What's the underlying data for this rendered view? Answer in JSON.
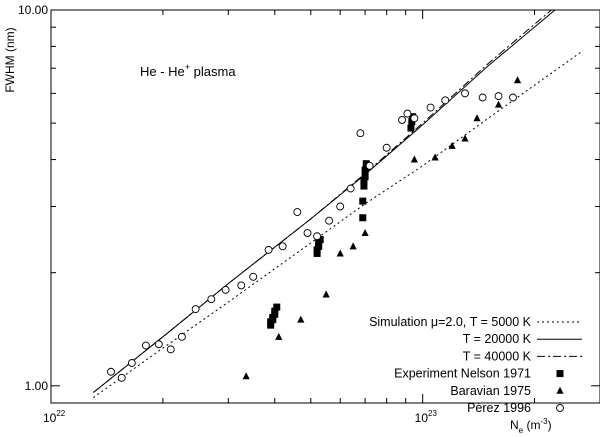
{
  "chart_data": {
    "type": "scatter",
    "title": "",
    "annotation": {
      "text": "He - He",
      "sup": "+",
      "suffix": " plasma"
    },
    "ylabel": "FWHM  (nm)",
    "xlabel": {
      "main": "N",
      "sub": "e",
      "unit_pre": " (m",
      "unit_sup": "-3",
      "unit_post": ")"
    },
    "xscale": "log",
    "yscale": "log",
    "xlim": [
      1e+22,
      3e+23
    ],
    "ylim": [
      0.9,
      10
    ],
    "xticks": [
      {
        "value": 1e+22,
        "base": "10",
        "exp": "22"
      },
      {
        "value": 1e+23,
        "base": "10",
        "exp": "23"
      }
    ],
    "yticks": [
      {
        "value": 1.0,
        "label": "1.00"
      },
      {
        "value": 10.0,
        "label": "10.00"
      }
    ],
    "grid": false,
    "legend_position": "bottom-right",
    "series": [
      {
        "name": "Simulation μ=2.0, T =   5000 K",
        "kind": "line",
        "dash": "2,3",
        "color": "#000000",
        "x": [
          1.3e+22,
          2e+22,
          3e+22,
          5e+22,
          7e+22,
          1e+23,
          1.5e+23,
          2.7e+23
        ],
        "y": [
          0.93,
          1.26,
          1.67,
          2.4,
          3.05,
          3.85,
          5.15,
          7.8
        ]
      },
      {
        "name": "T = 20000 K",
        "kind": "line",
        "dash": "",
        "color": "#000000",
        "x": [
          1.3e+22,
          2e+22,
          3e+22,
          5e+22,
          7e+22,
          1e+23,
          1.5e+23,
          2.27e+23
        ],
        "y": [
          0.96,
          1.35,
          1.87,
          2.78,
          3.65,
          4.95,
          7.1,
          10.0
        ]
      },
      {
        "name": "T = 40000 K",
        "kind": "line",
        "dash": "8,3,2,3",
        "color": "#000000",
        "x": [
          1.3e+22,
          2e+22,
          3e+22,
          5e+22,
          7e+22,
          1e+23,
          1.5e+23,
          2.22e+23
        ],
        "y": [
          0.96,
          1.35,
          1.87,
          2.78,
          3.67,
          5.0,
          7.2,
          10.0
        ]
      },
      {
        "name": "Experiment Nelson 1971",
        "kind": "points",
        "marker": "square",
        "x": [
          3.9e+22,
          3.9e+22,
          3.95e+22,
          3.95e+22,
          4e+22,
          4e+22,
          4.05e+22,
          5.2e+22,
          5.2e+22,
          5.25e+22,
          5.25e+22,
          5.3e+22,
          6.9e+22,
          6.9e+22,
          6.95e+22,
          6.95e+22,
          7e+22,
          7e+22,
          7.05e+22,
          9.3e+22,
          9.35e+22,
          9.4e+22
        ],
        "y": [
          1.45,
          1.48,
          1.5,
          1.52,
          1.55,
          1.58,
          1.62,
          2.25,
          2.3,
          2.35,
          2.4,
          2.45,
          2.8,
          3.1,
          3.4,
          3.5,
          3.6,
          3.75,
          3.9,
          4.85,
          5.05,
          5.2
        ]
      },
      {
        "name": "Baravian 1975",
        "kind": "points",
        "marker": "triangle",
        "x": [
          3.35e+22,
          4.1e+22,
          4.7e+22,
          5.5e+22,
          6e+22,
          6.5e+22,
          7e+22,
          9.5e+22,
          1.08e+23,
          1.2e+23,
          1.3e+23,
          1.4e+23,
          1.6e+23,
          1.8e+23
        ],
        "y": [
          1.06,
          1.35,
          1.5,
          1.75,
          2.25,
          2.35,
          2.55,
          4.0,
          4.05,
          4.35,
          4.55,
          5.15,
          5.6,
          6.5
        ]
      },
      {
        "name": "Pérez 1996",
        "kind": "points",
        "marker": "circle",
        "x": [
          1.45e+22,
          1.55e+22,
          1.65e+22,
          1.8e+22,
          1.95e+22,
          2.1e+22,
          2.25e+22,
          2.45e+22,
          2.7e+22,
          2.95e+22,
          3.25e+22,
          3.5e+22,
          3.85e+22,
          4.2e+22,
          4.6e+22,
          4.9e+22,
          5.2e+22,
          5.6e+22,
          6e+22,
          6.4e+22,
          6.8e+22,
          7.2e+22,
          8e+22,
          8.8e+22,
          9.1e+22,
          9.5e+22,
          1.05e+23,
          1.15e+23,
          1.3e+23,
          1.45e+23,
          1.6e+23,
          1.75e+23
        ],
        "y": [
          1.09,
          1.05,
          1.15,
          1.28,
          1.29,
          1.25,
          1.35,
          1.6,
          1.7,
          1.8,
          1.85,
          1.95,
          2.3,
          2.35,
          2.9,
          2.55,
          2.5,
          2.75,
          3.0,
          3.35,
          4.7,
          3.85,
          4.3,
          5.1,
          5.3,
          5.15,
          5.5,
          5.75,
          6.0,
          5.85,
          5.9,
          5.85
        ]
      }
    ]
  }
}
